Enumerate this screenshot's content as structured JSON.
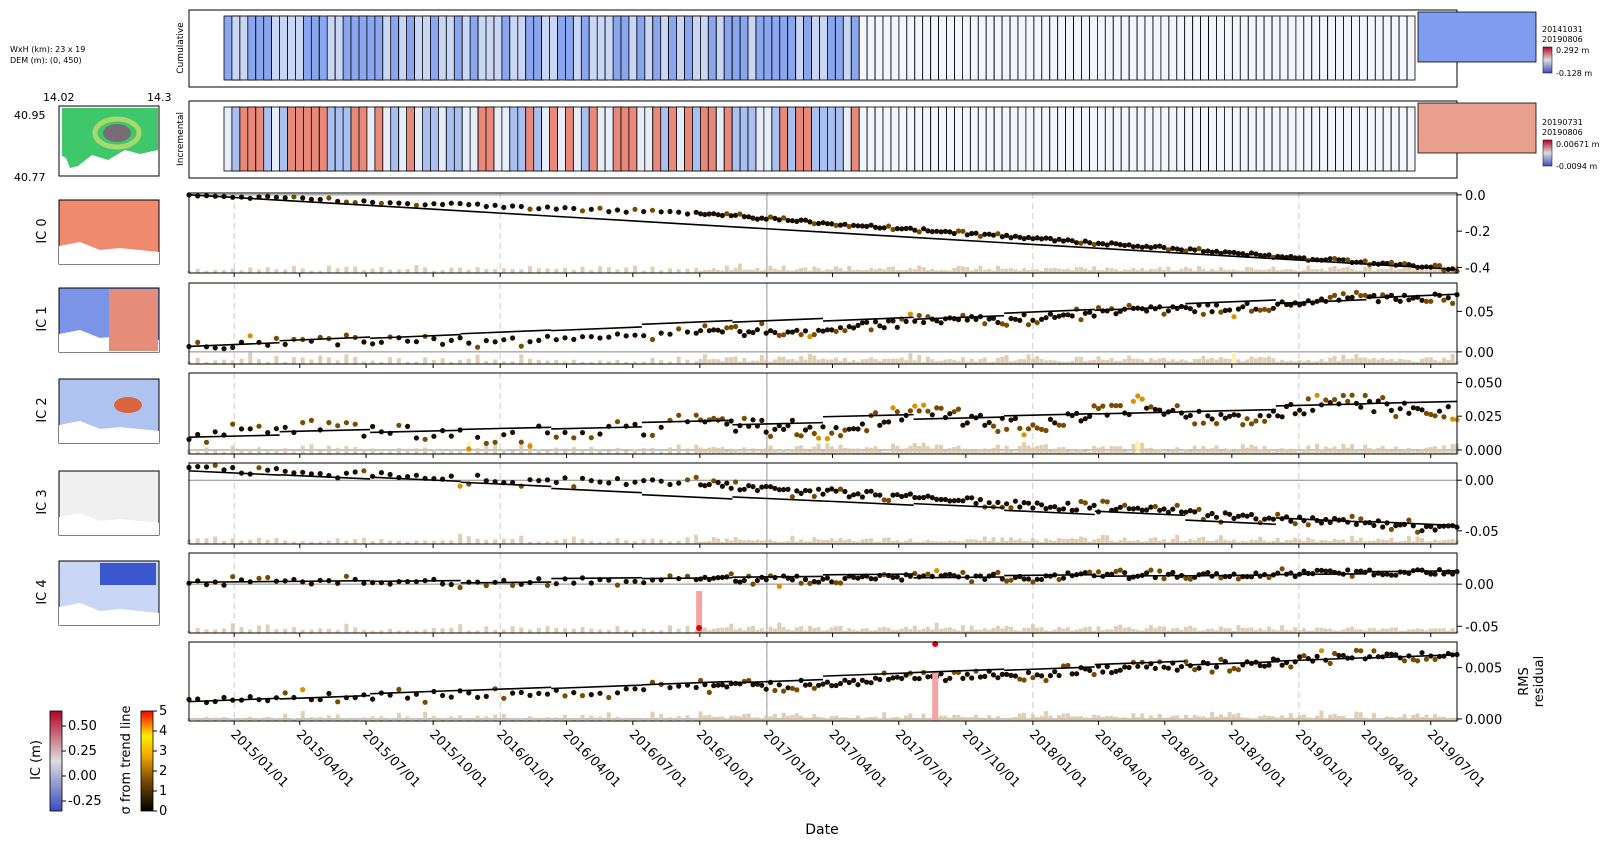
{
  "colors": {
    "frame": "#000000",
    "grid_dash": "#cccccc",
    "zero_line": "#888888",
    "trend": "#000000",
    "bar": "#d9c7a8",
    "bar_high": "#fff0a8",
    "bar_outlier": "#f5a3a3",
    "outlier_point": "#e60000",
    "cmap_blue": "#3b4cc0",
    "cmap_white": "#dddddd",
    "cmap_red": "#b40426",
    "dem_green": "#3ec76b"
  },
  "header": {
    "dims_label": "WxH (km): 23 x 19",
    "dem_label": "DEM (m): (0, 450)",
    "lon_ticks": [
      "14.02",
      "14.3"
    ],
    "lat_ticks": [
      "40.95",
      "40.77"
    ]
  },
  "thumbnails": {
    "cumulative_label": "Cumulative",
    "incremental_label": "Incremental",
    "cumulative_dates": [
      "20141031",
      "20190806"
    ],
    "cumulative_range": [
      "0.292 m",
      "-0.128 m"
    ],
    "incremental_dates": [
      "20190731",
      "20190806"
    ],
    "incremental_range": [
      "0.00671 m",
      "-0.0094 m"
    ]
  },
  "colorbars": {
    "ic": {
      "label": "IC (m)",
      "ticks": [
        "0.50",
        "0.25",
        "0.00",
        "-0.25"
      ]
    },
    "sigma": {
      "label": "σ from trend line",
      "ticks": [
        "5",
        "4",
        "3",
        "2",
        "1",
        "0"
      ]
    }
  },
  "chart_data": {
    "type": "scatter",
    "xlabel": "Date",
    "x_range": [
      "2014-10-31",
      "2019-08-06"
    ],
    "x_ticks": [
      "2015/01/01",
      "2015/04/01",
      "2015/07/01",
      "2015/10/01",
      "2016/01/01",
      "2016/04/01",
      "2016/07/01",
      "2016/10/01",
      "2017/01/01",
      "2017/04/01",
      "2017/07/01",
      "2017/10/01",
      "2018/01/01",
      "2018/04/01",
      "2018/07/01",
      "2018/10/01",
      "2019/01/01",
      "2019/04/01",
      "2019/07/01"
    ],
    "year_marks": [
      "2015-01-01",
      "2016-01-01",
      "2017-01-01",
      "2018-01-01",
      "2019-01-01"
    ],
    "panels": [
      {
        "label": "IC 0",
        "ylim": [
          -0.43,
          0.01
        ],
        "yticks": [
          "0.0",
          "-0.2",
          "-0.4"
        ],
        "ytick_values": [
          0.0,
          -0.2,
          -0.4
        ],
        "trend_start": 0.0,
        "trend_end": -0.41,
        "noise": 0.008,
        "seasonal": 0.0
      },
      {
        "label": "IC 1",
        "ylim": [
          -0.015,
          0.085
        ],
        "yticks": [
          "0.05",
          "0.00"
        ],
        "ytick_values": [
          0.05,
          0.0
        ],
        "trend_start": 0.006,
        "trend_end": 0.07,
        "noise": 0.005,
        "seasonal": 0.004
      },
      {
        "label": "IC 2",
        "ylim": [
          -0.003,
          0.057
        ],
        "yticks": [
          "0.050",
          "0.025",
          "0.000"
        ],
        "ytick_values": [
          0.05,
          0.025,
          0.0
        ],
        "trend_start": 0.011,
        "trend_end": 0.033,
        "noise": 0.005,
        "seasonal": 0.006
      },
      {
        "label": "IC 3",
        "ylim": [
          -0.063,
          0.017
        ],
        "yticks": [
          "0.00",
          "-0.05"
        ],
        "ytick_values": [
          0.0,
          -0.05
        ],
        "trend_start": 0.01,
        "trend_end": -0.048,
        "noise": 0.004,
        "seasonal": 0.002
      },
      {
        "label": "IC 4",
        "ylim": [
          -0.058,
          0.037
        ],
        "yticks": [
          "0.00",
          "-0.05"
        ],
        "ytick_values": [
          0.0,
          -0.05
        ],
        "trend_start": 0.001,
        "trend_end": 0.015,
        "noise": 0.004,
        "seasonal": 0.002
      },
      {
        "label": "",
        "right_label": "RMS residual",
        "ylim": [
          -0.0002,
          0.0075
        ],
        "yticks": [
          "0.005",
          "0.000"
        ],
        "ytick_values": [
          0.005,
          0.0
        ],
        "trend_start": 0.0018,
        "trend_end": 0.0064,
        "noise": 0.0004,
        "seasonal": 0.0002
      }
    ]
  }
}
